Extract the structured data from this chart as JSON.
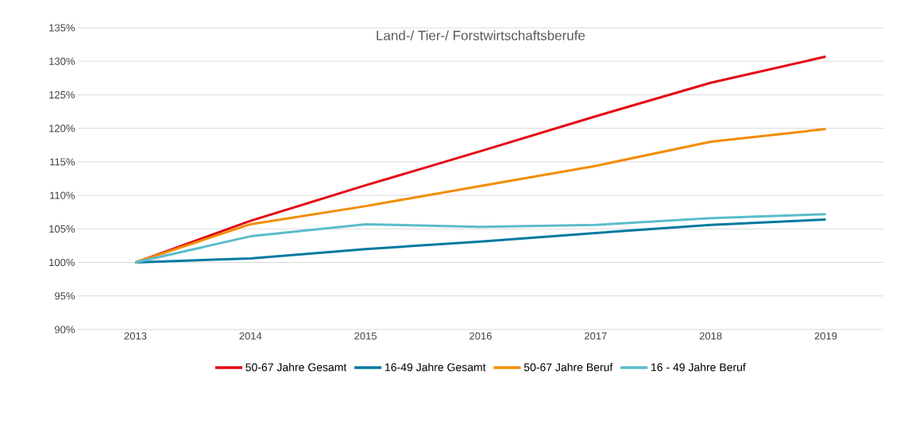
{
  "chart_data": {
    "type": "line",
    "title": "Land-/ Tier-/ Forstwirtschaftsberufe",
    "categories": [
      "2013",
      "2014",
      "2015",
      "2016",
      "2017",
      "2018",
      "2019"
    ],
    "series": [
      {
        "name": "50-67 Jahre Gesamt",
        "color": "#e30613",
        "values": [
          100,
          106.2,
          111.5,
          116.6,
          121.8,
          126.8,
          130.7
        ]
      },
      {
        "name": "16-49 Jahre Gesamt",
        "color": "#0079a0",
        "values": [
          100,
          100.6,
          102.0,
          103.1,
          104.4,
          105.6,
          106.4
        ]
      },
      {
        "name": "50-67 Jahre Beruf",
        "color": "#f28c00",
        "values": [
          100,
          105.7,
          108.4,
          111.4,
          114.4,
          118.0,
          119.9
        ]
      },
      {
        "name": "16 - 49 Jahre Beruf",
        "color": "#5bbccc",
        "values": [
          100,
          103.9,
          105.7,
          105.3,
          105.6,
          106.6,
          107.2
        ]
      }
    ],
    "ylim": [
      90,
      135
    ],
    "yticks": [
      {
        "value": 90,
        "label": "90%"
      },
      {
        "value": 95,
        "label": "95%"
      },
      {
        "value": 100,
        "label": "100%"
      },
      {
        "value": 105,
        "label": "105%"
      },
      {
        "value": 110,
        "label": "110%"
      },
      {
        "value": 115,
        "label": "115%"
      },
      {
        "value": 120,
        "label": "120%"
      },
      {
        "value": 125,
        "label": "125%"
      },
      {
        "value": 130,
        "label": "130%"
      },
      {
        "value": 135,
        "label": "135%"
      }
    ],
    "grid": "y",
    "legend": "bottom",
    "marker": "none",
    "line_style": "solid"
  }
}
